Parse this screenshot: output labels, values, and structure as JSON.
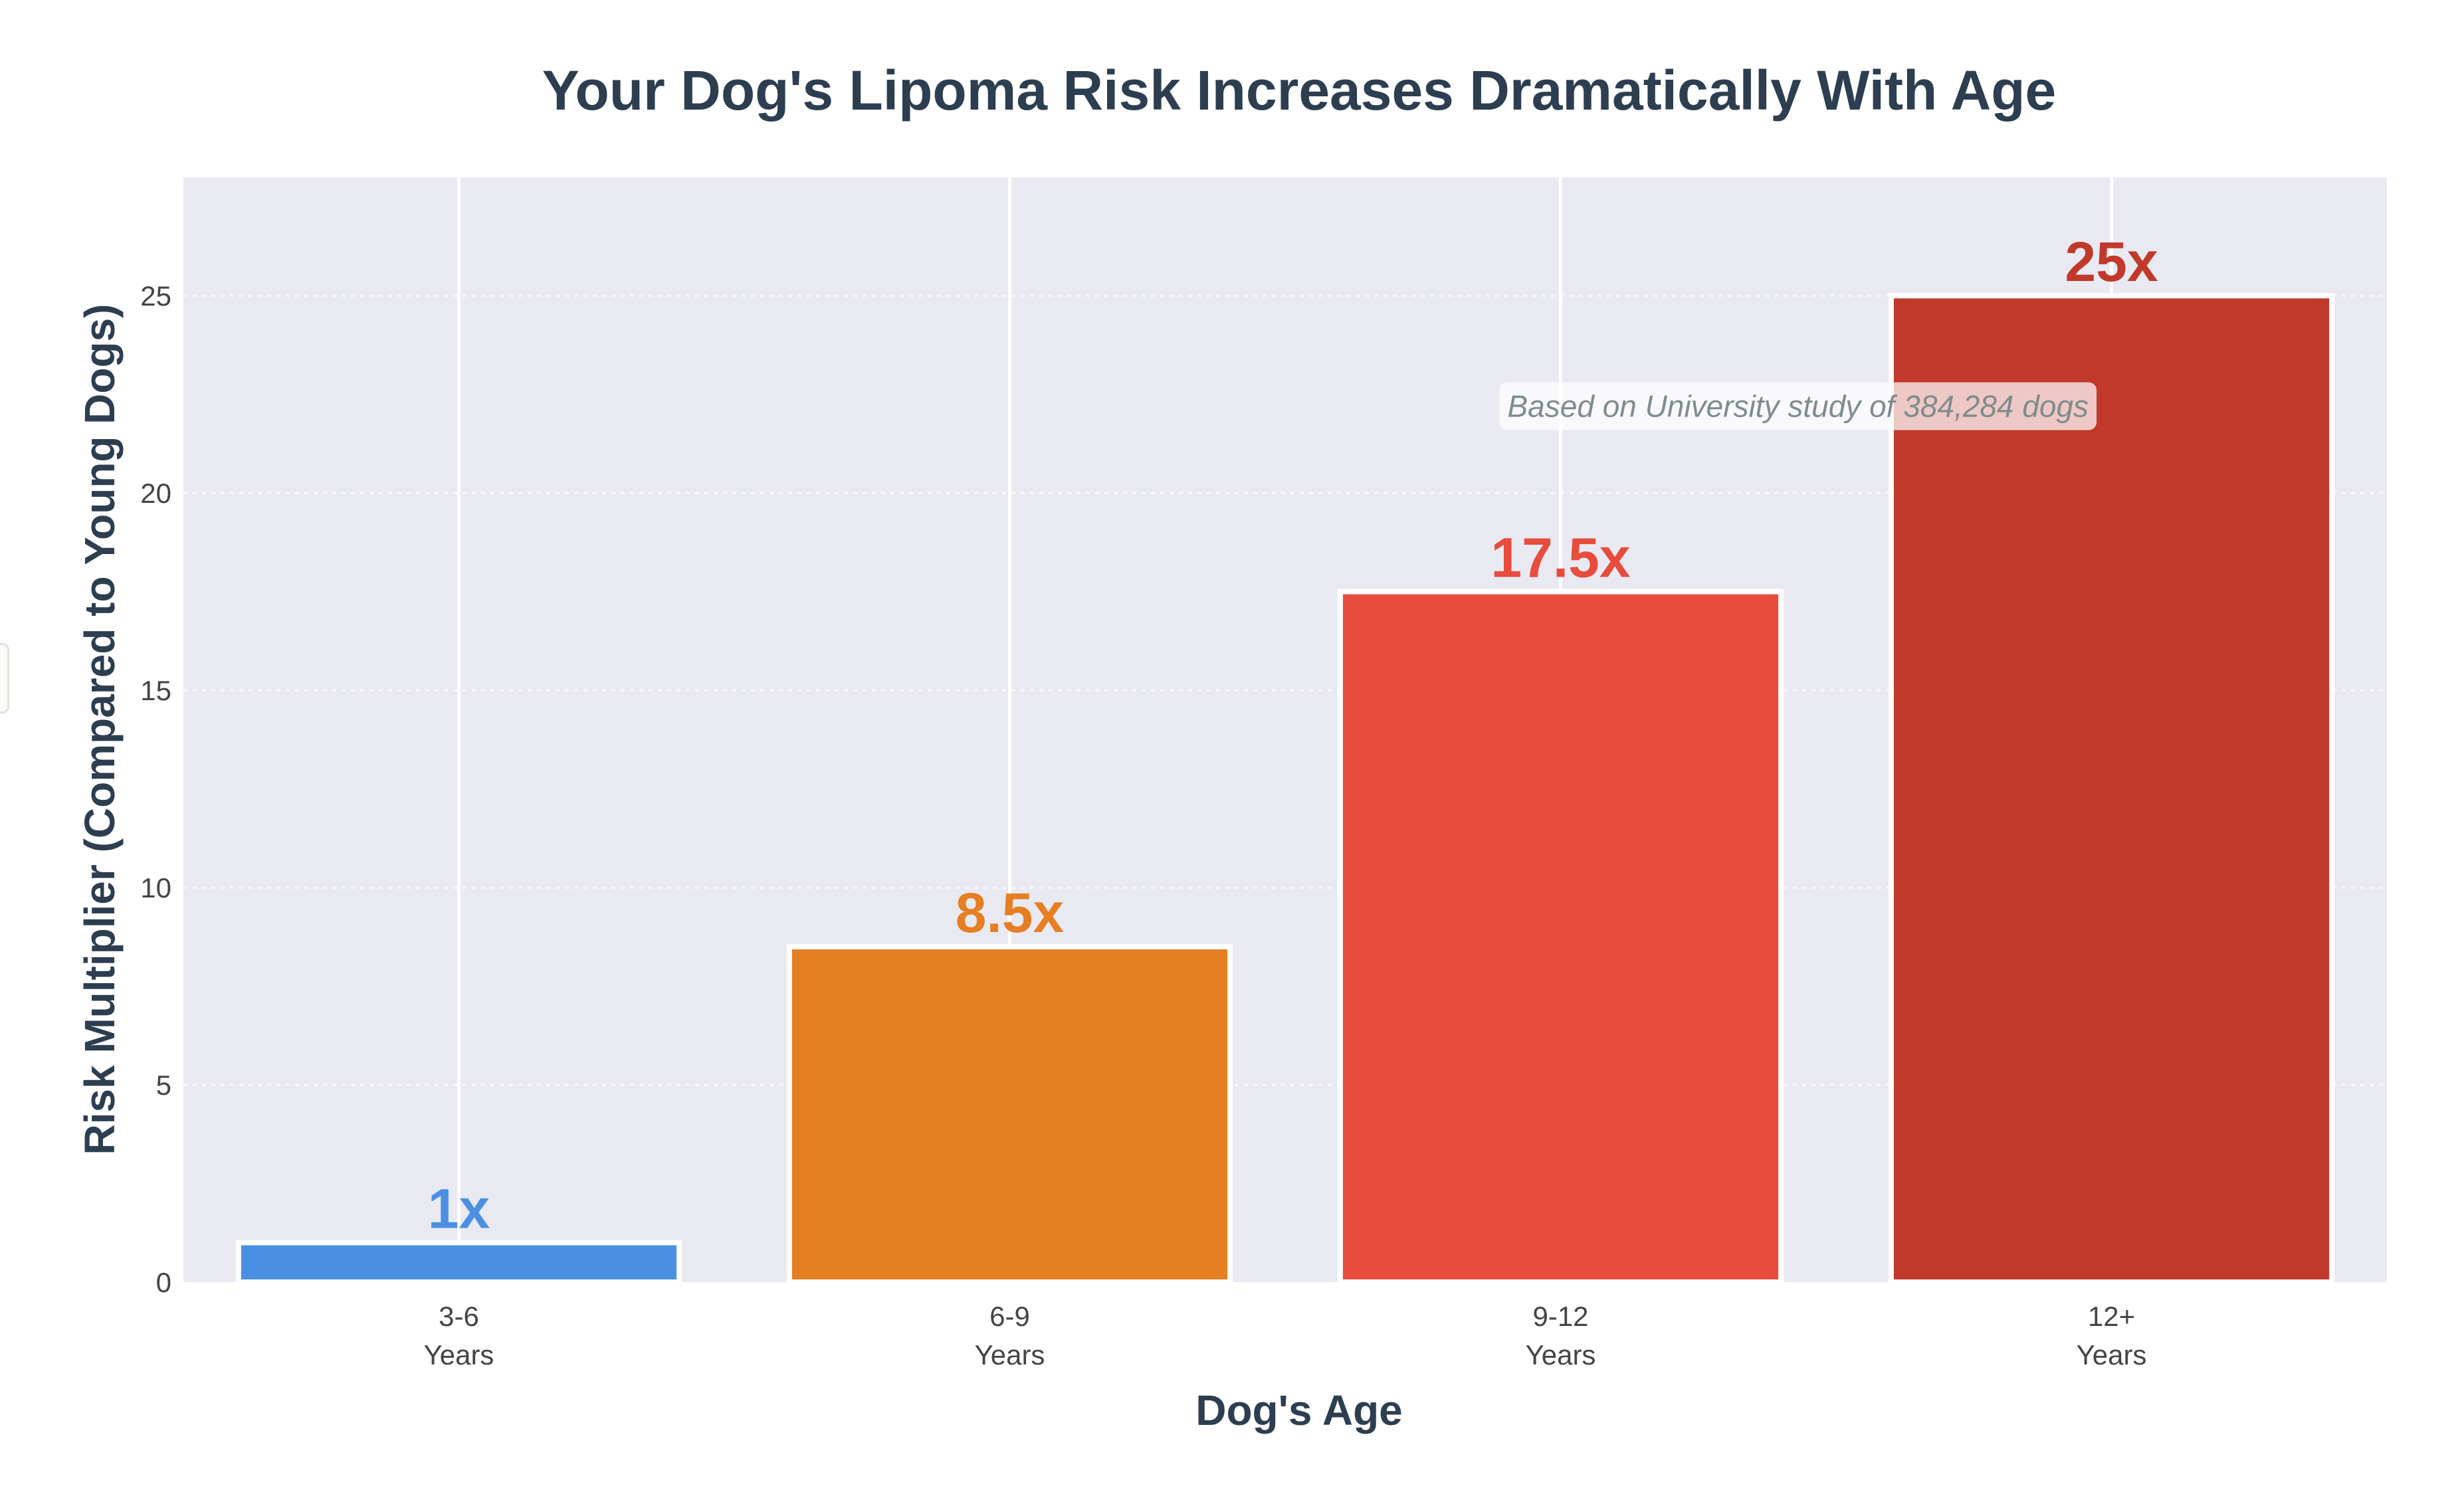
{
  "chart_data": {
    "type": "bar",
    "title": "Your Dog's Lipoma Risk Increases Dramatically With Age",
    "xlabel": "Dog's Age",
    "ylabel": "Risk Multiplier (Compared to Young Dogs)",
    "categories": [
      [
        "3-6",
        "Years"
      ],
      [
        "6-9",
        "Years"
      ],
      [
        "9-12",
        "Years"
      ],
      [
        "12+",
        "Years"
      ]
    ],
    "values": [
      1,
      8.5,
      17.5,
      25
    ],
    "bar_labels": [
      "1x",
      "8.5x",
      "17.5x",
      "25x"
    ],
    "colors": [
      "#4a90e2",
      "#e67e22",
      "#e74c3c",
      "#c0392b"
    ],
    "ylim": [
      0,
      28
    ],
    "yticks": [
      0,
      5,
      10,
      15,
      20,
      25
    ],
    "grid": true,
    "legend": "none",
    "annotation": "Based on University study of 384,284 dogs",
    "annotation_anchor": {
      "x_category": "9-12",
      "y": 22.2
    },
    "plot_background": "#e9e9f2"
  }
}
